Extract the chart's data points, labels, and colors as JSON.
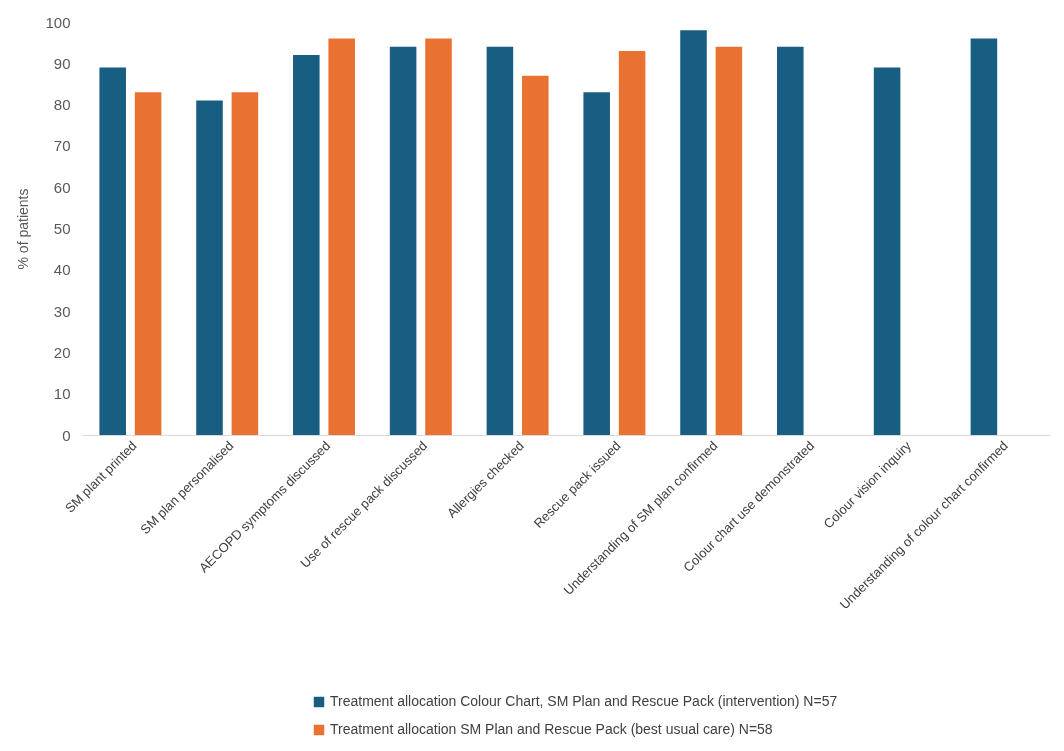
{
  "chart_data": {
    "type": "bar",
    "ylabel": "% of patients",
    "categories": [
      "SM plant printed",
      "SM plan personalised",
      "AECOPD symptoms discussed",
      "Use of rescue pack discussed",
      "Allergies checked",
      "Rescue pack issued",
      "Understanding of SM plan confirmed",
      "Colour chart use demonstrated",
      "Colour vision inquiry",
      "Understanding of colour chart confirmed"
    ],
    "series": [
      {
        "name": "Treatment allocation Colour Chart, SM Plan and Rescue Pack (intervention) N=57",
        "color": "#175e82",
        "values": [
          89,
          81,
          92,
          94,
          94,
          83,
          98,
          94,
          89,
          96
        ]
      },
      {
        "name": "Treatment allocation SM Plan and Rescue Pack  (best usual care) N=58",
        "color": "#e97132",
        "values": [
          83,
          83,
          96,
          96,
          87,
          93,
          94,
          null,
          null,
          null
        ]
      }
    ],
    "ylim": [
      0,
      100
    ],
    "yticks": [
      0,
      10,
      20,
      30,
      40,
      50,
      60,
      70,
      80,
      90,
      100
    ],
    "grid": false,
    "legend": "bottom"
  }
}
